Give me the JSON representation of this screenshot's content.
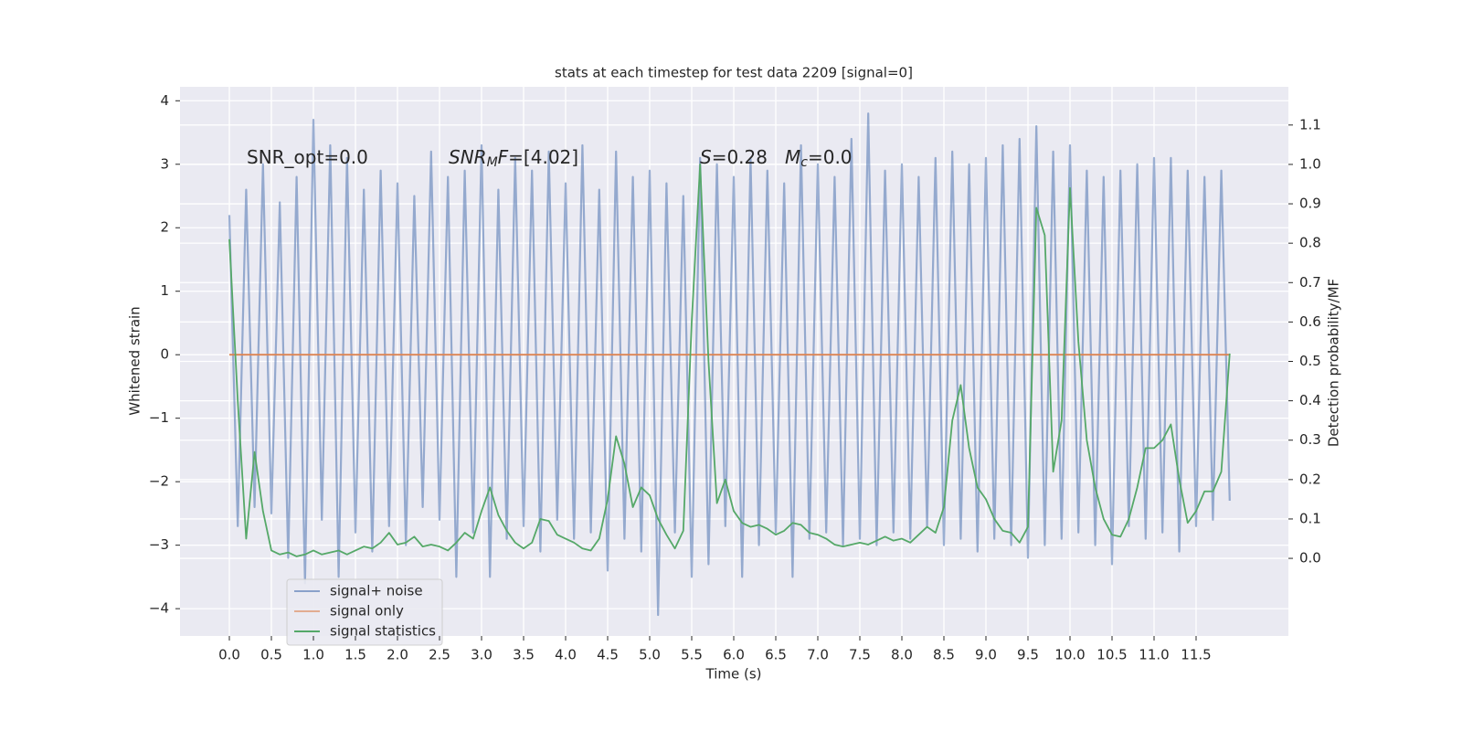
{
  "chart_data": {
    "type": "line",
    "title": "stats at each timestep for test data 2209 [signal=0]",
    "xlabel": "Time (s)",
    "ylabel": "Whitened strain",
    "y2label": "Detection probability/MF",
    "annotations": [
      [
        {
          "text": "SNR_opt=0.0"
        }
      ],
      [
        {
          "text": "SNR",
          "italic": true
        },
        {
          "text": "M",
          "italic": true,
          "sub": true
        },
        {
          "text": "F",
          "italic": true
        },
        {
          "text": "=[4.02]"
        }
      ],
      [
        {
          "text": "S",
          "italic": true
        },
        {
          "text": "=0.28"
        }
      ],
      [
        {
          "text": "M",
          "italic": true
        },
        {
          "text": "c",
          "italic": true,
          "sub": true
        },
        {
          "text": "=0.0"
        }
      ]
    ],
    "grid": true,
    "legend": "lower left",
    "xlim": [
      -0.587,
      12.598
    ],
    "ylim": [
      -4.43,
      4.22
    ],
    "y2lim": [
      -0.197,
      1.197
    ],
    "xticks": [
      {
        "value": 0,
        "label": "0.0"
      },
      {
        "value": 0.5,
        "label": "0.5"
      },
      {
        "value": 1,
        "label": "1.0"
      },
      {
        "value": 1.5,
        "label": "1.5"
      },
      {
        "value": 2,
        "label": "2.0"
      },
      {
        "value": 2.5,
        "label": "2.5"
      },
      {
        "value": 3,
        "label": "3.0"
      },
      {
        "value": 3.5,
        "label": "3.5"
      },
      {
        "value": 4,
        "label": "4.0"
      },
      {
        "value": 4.5,
        "label": "4.5"
      },
      {
        "value": 5,
        "label": "5.0"
      },
      {
        "value": 5.5,
        "label": "5.5"
      },
      {
        "value": 6,
        "label": "6.0"
      },
      {
        "value": 6.5,
        "label": "6.5"
      },
      {
        "value": 7,
        "label": "7.0"
      },
      {
        "value": 7.5,
        "label": "7.5"
      },
      {
        "value": 8,
        "label": "8.0"
      },
      {
        "value": 8.5,
        "label": "8.5"
      },
      {
        "value": 9,
        "label": "9.0"
      },
      {
        "value": 9.5,
        "label": "9.5"
      },
      {
        "value": 10,
        "label": "10.0"
      },
      {
        "value": 10.5,
        "label": "10.5"
      },
      {
        "value": 11,
        "label": "11.0"
      },
      {
        "value": 11.5,
        "label": "11.5"
      }
    ],
    "yticks": [
      {
        "value": -4,
        "label": "−4"
      },
      {
        "value": -3,
        "label": "−3"
      },
      {
        "value": -2,
        "label": "−2"
      },
      {
        "value": -1,
        "label": "−1"
      },
      0,
      1,
      2,
      3,
      4
    ],
    "y2ticks": [
      {
        "value": 0,
        "label": "0.0"
      },
      {
        "value": 0.1,
        "label": "0.1"
      },
      {
        "value": 0.2,
        "label": "0.2"
      },
      {
        "value": 0.3,
        "label": "0.3"
      },
      {
        "value": 0.4,
        "label": "0.4"
      },
      {
        "value": 0.5,
        "label": "0.5"
      },
      {
        "value": 0.6,
        "label": "0.6"
      },
      {
        "value": 0.7,
        "label": "0.7"
      },
      {
        "value": 0.8,
        "label": "0.8"
      },
      {
        "value": 0.9,
        "label": "0.9"
      },
      {
        "value": 1,
        "label": "1.0"
      },
      {
        "value": 1.1,
        "label": "1.1"
      }
    ],
    "x": [
      0,
      0.1,
      0.2,
      0.3,
      0.4,
      0.5,
      0.6,
      0.7,
      0.8,
      0.9,
      1,
      1.1,
      1.2,
      1.3,
      1.4,
      1.5,
      1.6,
      1.7,
      1.8,
      1.9,
      2,
      2.1,
      2.2,
      2.3,
      2.4,
      2.5,
      2.6,
      2.7,
      2.8,
      2.9,
      3,
      3.1,
      3.2,
      3.3,
      3.4,
      3.5,
      3.6,
      3.7,
      3.8,
      3.9,
      4,
      4.1,
      4.2,
      4.3,
      4.4,
      4.5,
      4.6,
      4.7,
      4.8,
      4.9,
      5,
      5.1,
      5.2,
      5.3,
      5.4,
      5.5,
      5.6,
      5.7,
      5.8,
      5.9,
      6,
      6.1,
      6.2,
      6.3,
      6.4,
      6.5,
      6.6,
      6.7,
      6.8,
      6.9,
      7,
      7.1,
      7.2,
      7.3,
      7.4,
      7.5,
      7.6,
      7.7,
      7.8,
      7.9,
      8,
      8.1,
      8.2,
      8.3,
      8.4,
      8.5,
      8.6,
      8.7,
      8.8,
      8.9,
      9,
      9.1,
      9.2,
      9.3,
      9.4,
      9.5,
      9.6,
      9.7,
      9.8,
      9.9,
      10,
      10.1,
      10.2,
      10.3,
      10.4,
      10.5,
      10.6,
      10.7,
      10.8,
      10.9,
      11,
      11.1,
      11.2,
      11.3,
      11.4,
      11.5,
      11.6,
      11.7,
      11.8,
      11.9
    ],
    "series": [
      {
        "name": "signal+ noise",
        "color": "#4c72b0",
        "values": [
          2.2,
          -2.7,
          2.6,
          -2.4,
          3.0,
          -2.5,
          2.4,
          -3.2,
          2.8,
          -3.6,
          3.7,
          -2.6,
          3.3,
          -3.5,
          3.1,
          -2.8,
          2.6,
          -3.1,
          2.9,
          -2.7,
          2.7,
          -3.0,
          2.5,
          -2.4,
          3.2,
          -2.6,
          2.8,
          -3.5,
          2.9,
          -2.8,
          3.3,
          -3.5,
          2.6,
          -2.9,
          3.1,
          -2.7,
          2.9,
          -3.1,
          3.2,
          -2.6,
          2.7,
          -2.9,
          3.3,
          -2.8,
          2.6,
          -3.4,
          3.2,
          -2.9,
          2.8,
          -3.1,
          2.9,
          -4.1,
          2.7,
          -2.8,
          2.5,
          -3.5,
          3.1,
          -3.3,
          3.0,
          -2.7,
          2.8,
          -3.5,
          3.1,
          -3.0,
          2.9,
          -2.8,
          2.7,
          -3.5,
          3.3,
          -2.9,
          3.0,
          -2.8,
          2.8,
          -3.0,
          3.4,
          -2.9,
          3.8,
          -3.0,
          2.9,
          -2.8,
          3.0,
          -2.9,
          2.8,
          -2.7,
          3.1,
          -3.0,
          3.2,
          -2.9,
          3.0,
          -3.1,
          3.1,
          -2.9,
          3.3,
          -3.0,
          3.4,
          -3.2,
          3.6,
          -3.0,
          3.2,
          -2.9,
          3.3,
          -2.8,
          2.9,
          -3.0,
          2.8,
          -3.3,
          2.9,
          -2.7,
          3.0,
          -2.9,
          3.1,
          -2.8,
          3.1,
          -3.1,
          2.9,
          -2.7,
          2.8,
          -2.6,
          2.9,
          -2.3
        ]
      },
      {
        "name": "signal only",
        "color": "#dd8452",
        "x": [
          0,
          11.9
        ],
        "values": [
          0,
          0
        ]
      },
      {
        "name": "signal statistics",
        "color": "#55a868",
        "axis": "y2",
        "values": [
          0.81,
          0.4,
          0.05,
          0.27,
          0.12,
          0.02,
          0.01,
          0.015,
          0.005,
          0.01,
          0.02,
          0.01,
          0.015,
          0.02,
          0.01,
          0.02,
          0.03,
          0.025,
          0.04,
          0.065,
          0.035,
          0.04,
          0.055,
          0.03,
          0.035,
          0.03,
          0.02,
          0.04,
          0.065,
          0.05,
          0.12,
          0.18,
          0.11,
          0.07,
          0.04,
          0.025,
          0.04,
          0.1,
          0.095,
          0.06,
          0.05,
          0.04,
          0.025,
          0.02,
          0.05,
          0.15,
          0.31,
          0.24,
          0.13,
          0.18,
          0.16,
          0.1,
          0.06,
          0.025,
          0.07,
          0.6,
          1.0,
          0.5,
          0.14,
          0.2,
          0.12,
          0.09,
          0.08,
          0.085,
          0.075,
          0.06,
          0.07,
          0.09,
          0.085,
          0.065,
          0.06,
          0.05,
          0.035,
          0.03,
          0.035,
          0.04,
          0.035,
          0.045,
          0.055,
          0.045,
          0.05,
          0.04,
          0.06,
          0.08,
          0.065,
          0.13,
          0.35,
          0.44,
          0.28,
          0.18,
          0.15,
          0.1,
          0.07,
          0.065,
          0.04,
          0.08,
          0.89,
          0.82,
          0.22,
          0.35,
          0.94,
          0.55,
          0.3,
          0.18,
          0.1,
          0.06,
          0.055,
          0.1,
          0.18,
          0.28,
          0.28,
          0.3,
          0.34,
          0.2,
          0.09,
          0.12,
          0.17,
          0.17,
          0.22,
          0.52
        ]
      }
    ]
  }
}
